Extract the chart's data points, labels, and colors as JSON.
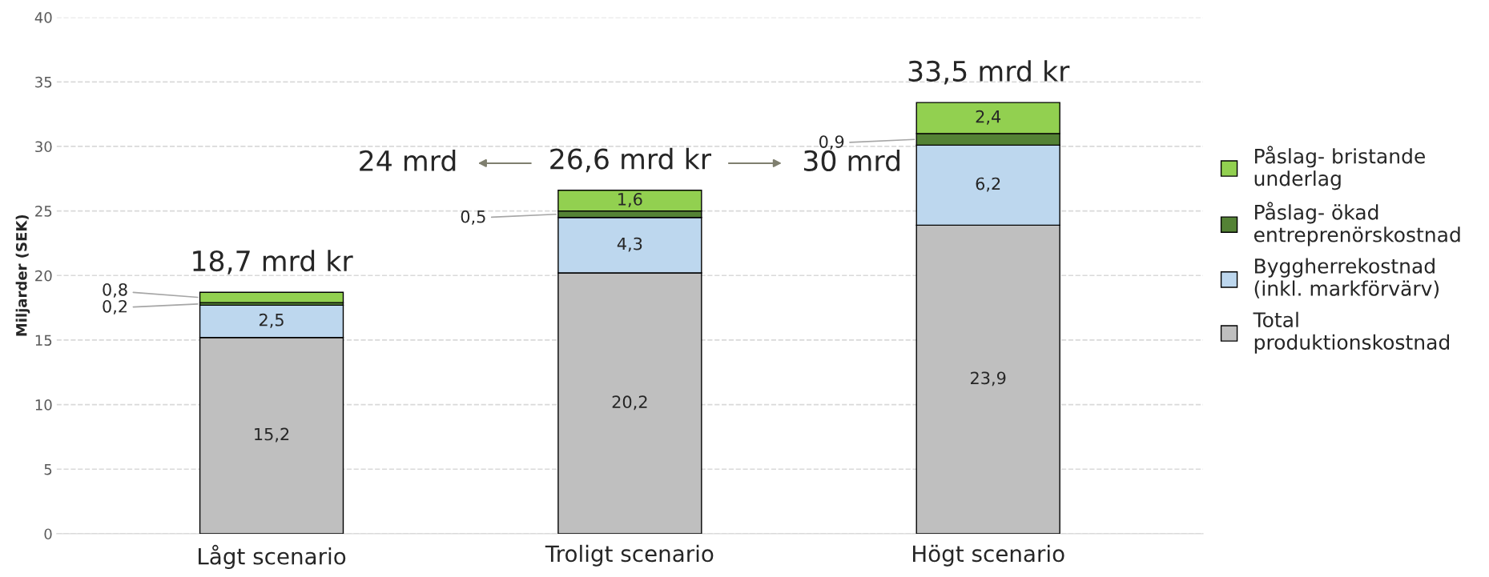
{
  "chart_data": {
    "type": "bar",
    "stacked": true,
    "categories": [
      "Lågt scenario",
      "Troligt scenario",
      "Högt scenario"
    ],
    "ylabel": "Miljarder (SEK)",
    "series": [
      {
        "name": "Total\nproduktionskostnad",
        "color": "#bfbfbf",
        "values": [
          15.2,
          20.2,
          23.9
        ],
        "value_labels": [
          "15,2",
          "20,2",
          "23,9"
        ]
      },
      {
        "name": "Byggherrekostnad\n(inkl. markförvärv)",
        "color": "#bdd7ee",
        "values": [
          2.5,
          4.3,
          6.2
        ],
        "value_labels": [
          "2,5",
          "4,3",
          "6,2"
        ]
      },
      {
        "name": "Påslag- ökad\nentreprenörskostnad",
        "color": "#548235",
        "values": [
          0.2,
          0.5,
          0.9
        ],
        "value_labels": [
          "0,2",
          "0,5",
          "0,9"
        ]
      },
      {
        "name": "Påslag- bristande\nunderlag",
        "color": "#92d050",
        "values": [
          0.8,
          1.6,
          2.4
        ],
        "value_labels": [
          "0,8",
          "1,6",
          "2,4"
        ]
      }
    ],
    "totals": [
      "18,7 mrd kr",
      "26,6 mrd kr",
      "33,5 mrd kr"
    ],
    "annotations": [
      "24 mrd",
      "30 mrd"
    ],
    "ylim": [
      0,
      40
    ],
    "yticks": [
      0,
      5,
      10,
      15,
      20,
      25,
      30,
      35,
      40
    ],
    "grid": "y",
    "legend": "right"
  }
}
